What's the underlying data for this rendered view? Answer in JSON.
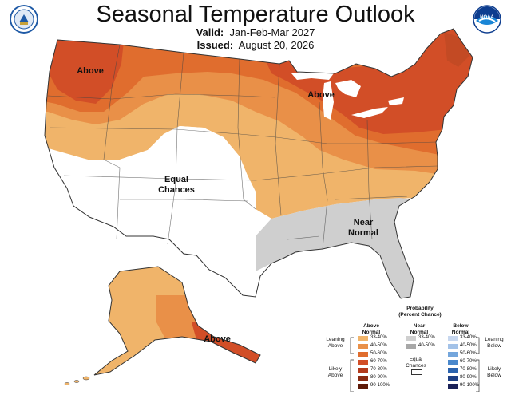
{
  "header": {
    "title": "Seasonal Temperature Outlook",
    "valid_label": "Valid:",
    "valid_value": "Jan-Feb-Mar 2027",
    "issued_label": "Issued:",
    "issued_value": "August 20, 2026",
    "left_logo_text": "DEPARTMENT OF COMMERCE",
    "right_logo_text": "NOAA"
  },
  "map_labels": {
    "northwest": "Above",
    "great_lakes": "Above",
    "equal_line1": "Equal",
    "equal_line2": "Chances",
    "near_line1": "Near",
    "near_line2": "Normal",
    "alaska": "Above"
  },
  "colors": {
    "above_33_40": "#f0b46a",
    "above_40_50": "#e99048",
    "above_50_60": "#e06d2e",
    "above_60_70": "#d24e27",
    "above_70_80": "#b33a1c",
    "above_80_90": "#8a2a12",
    "above_90_100": "#5e1a08",
    "near_33_40": "#cfcfcf",
    "near_40_50": "#a8a8a8",
    "below_33_40": "#c7d7ef",
    "below_40_50": "#a3c2e8",
    "below_50_60": "#74a6dc",
    "below_60_70": "#4a88cc",
    "below_70_80": "#2b63ae",
    "below_80_90": "#1d3f84",
    "below_90_100": "#1a2158",
    "equal": "#ffffff"
  },
  "legend": {
    "title_line1": "Probability",
    "title_line2": "(Percent Chance)",
    "above_head1": "Above",
    "above_head2": "Normal",
    "near_head1": "Near",
    "near_head2": "Normal",
    "below_head1": "Below",
    "below_head2": "Normal",
    "leaning_above1": "Leaning",
    "leaning_above2": "Above",
    "likely_above1": "Likely",
    "likely_above2": "Above",
    "leaning_below1": "Leaning",
    "leaning_below2": "Below",
    "likely_below1": "Likely",
    "likely_below2": "Below",
    "equal1": "Equal",
    "equal2": "Chances",
    "above_ranges": [
      "33-40%",
      "40-50%",
      "50-60%",
      "60-70%",
      "70-80%",
      "80-90%",
      "90-100%"
    ],
    "near_ranges": [
      "33-40%",
      "40-50%"
    ],
    "below_ranges": [
      "33-40%",
      "40-50%",
      "50-60%",
      "60-70%",
      "70-80%",
      "80-90%",
      "90-100%"
    ]
  }
}
